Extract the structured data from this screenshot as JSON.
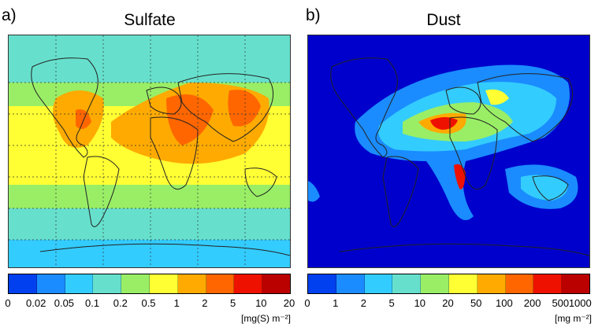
{
  "panels": [
    {
      "letter": "a)",
      "title": "Sulfate",
      "unit": "[mg(S) m⁻²]",
      "ticks": [
        "0",
        "0.02",
        "0.05",
        "0.1",
        "0.2",
        "0.5",
        "1",
        "2",
        "5",
        "10",
        "20"
      ]
    },
    {
      "letter": "b)",
      "title": "Dust",
      "unit": "[mg m⁻²]",
      "ticks": [
        "0",
        "1",
        "2",
        "5",
        "10",
        "20",
        "50",
        "100",
        "200",
        "500",
        "1000"
      ]
    }
  ],
  "colormap": [
    "#0000cc",
    "#0040ee",
    "#1a8cff",
    "#33ccff",
    "#66e0cc",
    "#99ee66",
    "#ffff33",
    "#ffaa00",
    "#ff6600",
    "#ee1100",
    "#bb0000"
  ]
}
